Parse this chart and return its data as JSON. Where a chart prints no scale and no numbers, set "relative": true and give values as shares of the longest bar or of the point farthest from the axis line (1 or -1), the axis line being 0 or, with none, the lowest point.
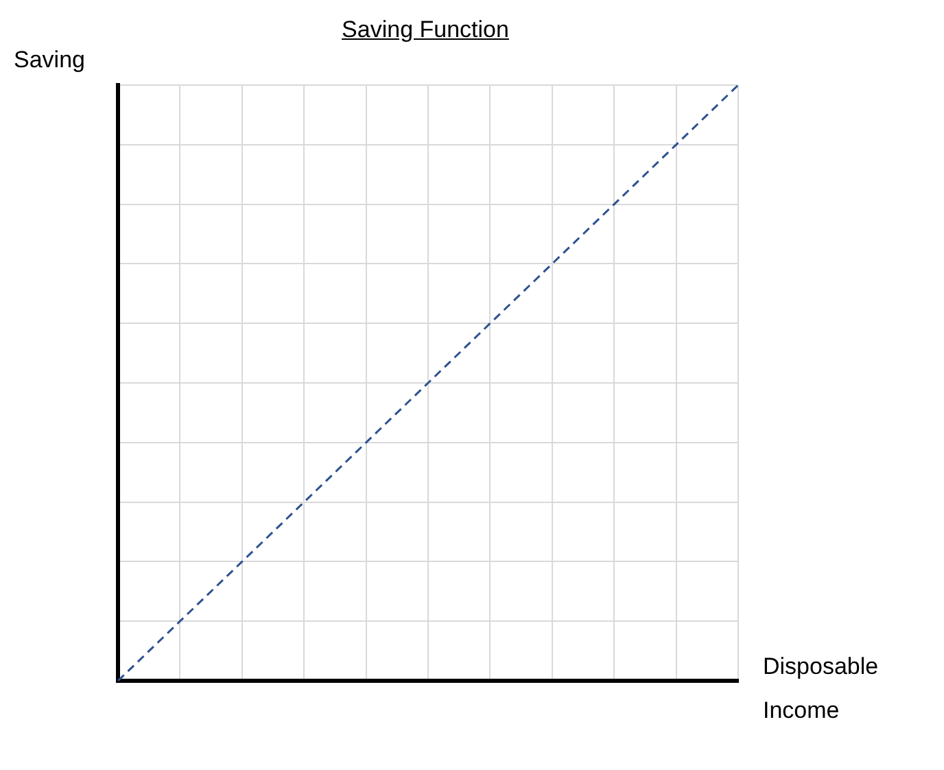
{
  "chart_data": {
    "type": "line",
    "title": "Saving Function",
    "xlabel": "Disposable Income",
    "ylabel": "Saving",
    "relative": true,
    "grid": true,
    "marker": "none",
    "line_style": "dashed",
    "categories": [
      null,
      null,
      null,
      null,
      null,
      null,
      null,
      null,
      null,
      null,
      null
    ],
    "series": [
      {
        "color": "#2f528f",
        "values": [
          0,
          0.1,
          0.2,
          0.3,
          0.4,
          0.5,
          0.6,
          0.7,
          0.8,
          0.9,
          1
        ]
      }
    ]
  }
}
